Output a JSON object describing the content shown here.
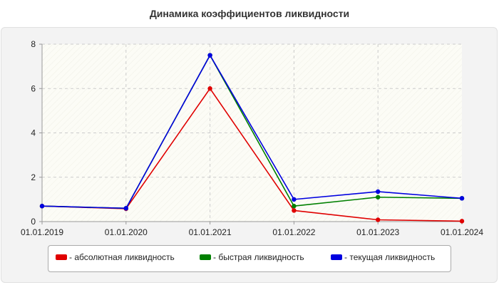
{
  "chart_data": {
    "type": "line",
    "title": "Динамика коэффициентов ликвидности",
    "xlabel": "",
    "ylabel": "",
    "categories": [
      "01.01.2019",
      "01.01.2020",
      "01.01.2021",
      "01.01.2022",
      "01.01.2023",
      "01.01.2024"
    ],
    "ylim": [
      0,
      8
    ],
    "yticks": [
      "0",
      "2",
      "4",
      "6",
      "8"
    ],
    "grid": true,
    "legend_position": "bottom",
    "series": [
      {
        "name": "- абсолютная ликвидность",
        "color": "#e00000",
        "values": [
          0.7,
          0.58,
          6.0,
          0.5,
          0.08,
          0.02
        ]
      },
      {
        "name": "- быстрая ликвидность",
        "color": "#008000",
        "values": [
          0.7,
          0.6,
          7.5,
          0.7,
          1.1,
          1.05
        ]
      },
      {
        "name": "- текущая ликвидность",
        "color": "#0000e0",
        "values": [
          0.7,
          0.6,
          7.5,
          1.0,
          1.35,
          1.05
        ]
      }
    ]
  }
}
